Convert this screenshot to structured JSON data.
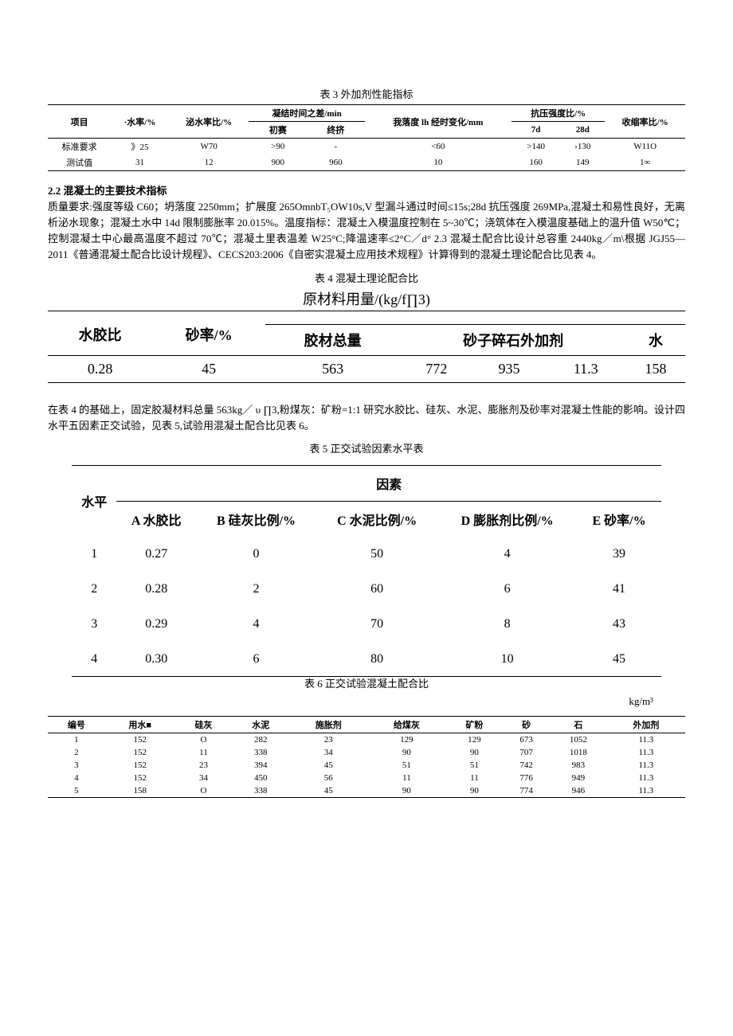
{
  "table3": {
    "title": "表 3 外加剂性能指标",
    "headers": {
      "item": "项目",
      "water_rate": "·水率/%",
      "bleed_rate": "泌水率比/%",
      "setting_diff": "凝结时间之差/min",
      "setting_initial": "初赛",
      "setting_final": "终挤",
      "slump_change": "我落度 lh 经时变化/mm",
      "comp_ratio": "抗压强度比/%",
      "comp_7d": "7d",
      "comp_28d": "28d",
      "shrink_ratio": "收缩率比/%"
    },
    "rows": [
      {
        "item": "标准要求",
        "water_rate": "》25",
        "bleed_rate": "W70",
        "initial": ">90",
        "final": "-",
        "slump": "<60",
        "c7d": ">140",
        "c28d": "›130",
        "shrink": "W11O"
      },
      {
        "item": "测试值",
        "water_rate": "31",
        "bleed_rate": "12",
        "initial": "900",
        "final": "960",
        "slump": "10",
        "c7d": "160",
        "c28d": "149",
        "shrink": "1∞"
      }
    ]
  },
  "section22_title": "2.2  混凝土的主要技术指标",
  "section22_para": "质量要求:强度等级 C60；坍落度 2250mm；扩展度 265OmnbT₅OW10s,V 型漏斗通过时间≤15s;28d 抗压强度 269MPa,混凝土和易性良好，无离析泌水现象；混凝土水中 14d 限制膨胀率 20.015%。温度指标：混凝土入模温度控制在 5~30℃；浇筑体在入模温度基础上的温升值 W50℃；控制混凝土中心最高温度不超过 70℃；混凝土里表温差 W25°C;降温速率≤2°C／d° 2.3 混凝土配合比设计总容重 2440kg／m\\根据 JGJ55—2011《普通混凝土配合比设计规程》、CECS203:2006《自密实混凝土应用技术规程》计算得到的混凝土理论配合比见表 4。",
  "table4": {
    "title": "表 4 混凝土理论配合比",
    "subtitle": "原材料用量/(kg/f∏3)",
    "headers": {
      "wc": "水胶比",
      "sand_rate": "砂率/%",
      "binder_total": "胶材总量",
      "sand_stone_admix": "砂子碎石外加剂",
      "water": "水"
    },
    "row": [
      "0.28",
      "45",
      "563",
      "772",
      "935",
      "11.3",
      "158"
    ]
  },
  "para_after_t4": "在表 4 的基础上，固定胶凝材料总量 563kg／ υ ∏3,粉煤灰：矿粉=1:1 研究水胶比、硅灰、水泥、膨胀剂及砂率对混凝土性能的影响。设计四水平五因素正交试验，见表 5,试验用混凝土配合比见表 6。",
  "table5": {
    "title": "表 5 正交试验因素水平表",
    "headers": {
      "level": "水平",
      "factor": "因素",
      "a": "A 水胶比",
      "b": "B 硅灰比例/%",
      "c": "C 水泥比例/%",
      "d": "D 膨胀剂比例/%",
      "e": "E 砂率/%"
    },
    "rows": [
      [
        "1",
        "0.27",
        "0",
        "50",
        "4",
        "39"
      ],
      [
        "2",
        "0.28",
        "2",
        "60",
        "6",
        "41"
      ],
      [
        "3",
        "0.29",
        "4",
        "70",
        "8",
        "43"
      ],
      [
        "4",
        "0.30",
        "6",
        "80",
        "10",
        "45"
      ]
    ]
  },
  "table6": {
    "title": "表 6 正交试验混凝土配合比",
    "unit": "kg/m³",
    "headers": [
      "编号",
      "用水■",
      "硅灰",
      "水泥",
      "施胀剂",
      "给煤灰",
      "矿粉",
      "砂",
      "石",
      "外加剂"
    ],
    "rows": [
      [
        "1",
        "152",
        "O",
        "282",
        "23",
        "129",
        "129",
        "673",
        "1052",
        "11.3"
      ],
      [
        "2",
        "152",
        "11",
        "338",
        "34",
        "90",
        "90",
        "707",
        "1018",
        "11.3"
      ],
      [
        "3",
        "152",
        "23",
        "394",
        "45",
        "51",
        "51",
        "742",
        "983",
        "11.3"
      ],
      [
        "4",
        "152",
        "34",
        "450",
        "56",
        "11",
        "11",
        "776",
        "949",
        "11.3"
      ],
      [
        "5",
        "158",
        "O",
        "338",
        "45",
        "90",
        "90",
        "774",
        "946",
        "11.3"
      ]
    ]
  }
}
